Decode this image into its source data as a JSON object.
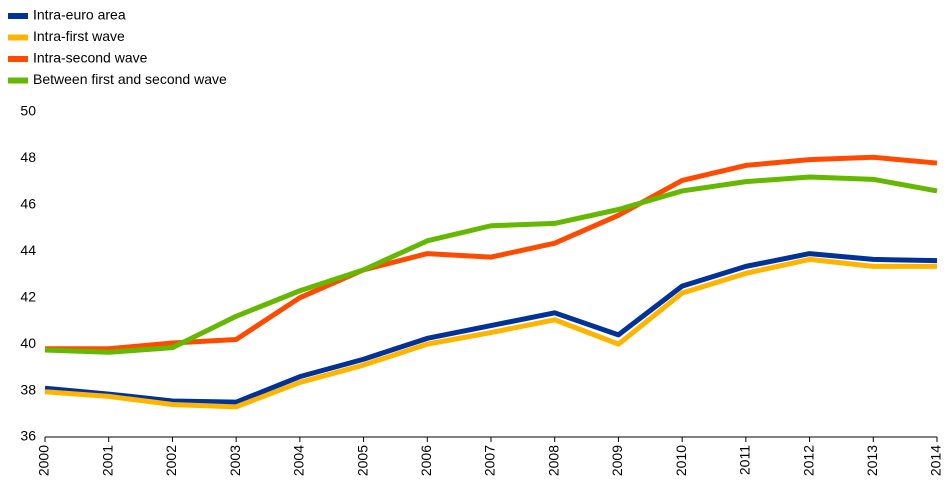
{
  "chart_data": {
    "type": "line",
    "categories": [
      "2000",
      "2001",
      "2002",
      "2003",
      "2004",
      "2005",
      "2006",
      "2007",
      "2008",
      "2009",
      "2010",
      "2011",
      "2012",
      "2013",
      "2014"
    ],
    "series": [
      {
        "name": "Intra-euro area",
        "color": "#003299",
        "values": [
          38.1,
          37.85,
          37.55,
          37.5,
          38.6,
          39.35,
          40.25,
          40.8,
          41.35,
          40.4,
          42.5,
          43.35,
          43.9,
          43.65,
          43.6
        ]
      },
      {
        "name": "Intra-first wave",
        "color": "#ffb400",
        "values": [
          37.95,
          37.75,
          37.4,
          37.3,
          38.35,
          39.1,
          40.0,
          40.5,
          41.05,
          40.0,
          42.2,
          43.05,
          43.65,
          43.35,
          43.35
        ]
      },
      {
        "name": "Intra-second wave",
        "color": "#ff4b00",
        "values": [
          39.8,
          39.8,
          40.05,
          40.2,
          42.0,
          43.2,
          43.9,
          43.75,
          44.35,
          45.55,
          47.05,
          47.7,
          47.95,
          48.05,
          47.8
        ]
      },
      {
        "name": "Between first and second wave",
        "color": "#65b800",
        "values": [
          39.75,
          39.65,
          39.85,
          41.2,
          42.3,
          43.2,
          44.45,
          45.1,
          45.2,
          45.8,
          46.6,
          47.0,
          47.2,
          47.1,
          46.6
        ]
      }
    ],
    "ylim": [
      36,
      50
    ],
    "yticks": [
      36,
      38,
      40,
      42,
      44,
      46,
      48,
      50
    ],
    "legend": "top-left"
  }
}
